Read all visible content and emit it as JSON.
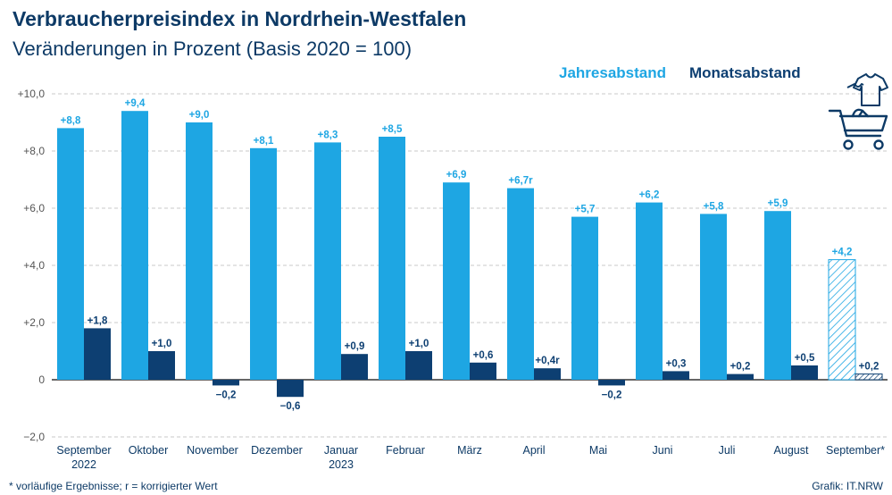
{
  "title": "Verbraucherpreisindex in Nordrhein-Westfalen",
  "subtitle": "Veränderungen in Prozent (Basis 2020 = 100)",
  "legend": {
    "yoy": "Jahresabstand",
    "mom": "Monatsabstand"
  },
  "footnote": "*  vorläufige Ergebnisse; r = korrigierter Wert",
  "credit": "Grafik: IT.NRW",
  "colors": {
    "yoy": "#1ea6e3",
    "mom": "#0d3f72",
    "text": "#0d3a66",
    "axis": "#555555"
  },
  "icons": [
    "tshirt-icon",
    "shopping-cart-icon"
  ],
  "chart_data": {
    "type": "bar",
    "categories": [
      {
        "label": "September",
        "sub": "2022"
      },
      {
        "label": "Oktober",
        "sub": ""
      },
      {
        "label": "November",
        "sub": ""
      },
      {
        "label": "Dezember",
        "sub": ""
      },
      {
        "label": "Januar",
        "sub": "2023"
      },
      {
        "label": "Februar",
        "sub": ""
      },
      {
        "label": "März",
        "sub": ""
      },
      {
        "label": "April",
        "sub": ""
      },
      {
        "label": "Mai",
        "sub": ""
      },
      {
        "label": "Juni",
        "sub": ""
      },
      {
        "label": "Juli",
        "sub": ""
      },
      {
        "label": "August",
        "sub": ""
      },
      {
        "label": "September*",
        "sub": ""
      }
    ],
    "series": [
      {
        "name": "Jahresabstand",
        "values": [
          8.8,
          9.4,
          9.0,
          8.1,
          8.3,
          8.5,
          6.9,
          6.7,
          5.7,
          6.2,
          5.8,
          5.9,
          4.2
        ],
        "labels": [
          "+8,8",
          "+9,4",
          "+9,0",
          "+8,1",
          "+8,3",
          "+8,5",
          "+6,9",
          "+6,7r",
          "+5,7",
          "+6,2",
          "+5,8",
          "+5,9",
          "+4,2"
        ]
      },
      {
        "name": "Monatsabstand",
        "values": [
          1.8,
          1.0,
          -0.2,
          -0.6,
          0.9,
          1.0,
          0.6,
          0.4,
          -0.2,
          0.3,
          0.2,
          0.5,
          0.2
        ],
        "labels": [
          "+1,8",
          "+1,0",
          "−0,2",
          "−0,6",
          "+0,9",
          "+1,0",
          "+0,6",
          "+0,4r",
          "−0,2",
          "+0,3",
          "+0,2",
          "+0,5",
          "+0,2"
        ]
      }
    ],
    "preliminary_index": 12,
    "y_ticks": [
      10,
      8,
      6,
      4,
      2,
      0,
      -2
    ],
    "y_tick_labels": [
      "+10,0",
      "+8,0",
      "+6,0",
      "+4,0",
      "+2,0",
      "0",
      "−2,0"
    ],
    "ylim": [
      -2,
      10
    ],
    "grid": true,
    "legend_position": "top-right"
  }
}
